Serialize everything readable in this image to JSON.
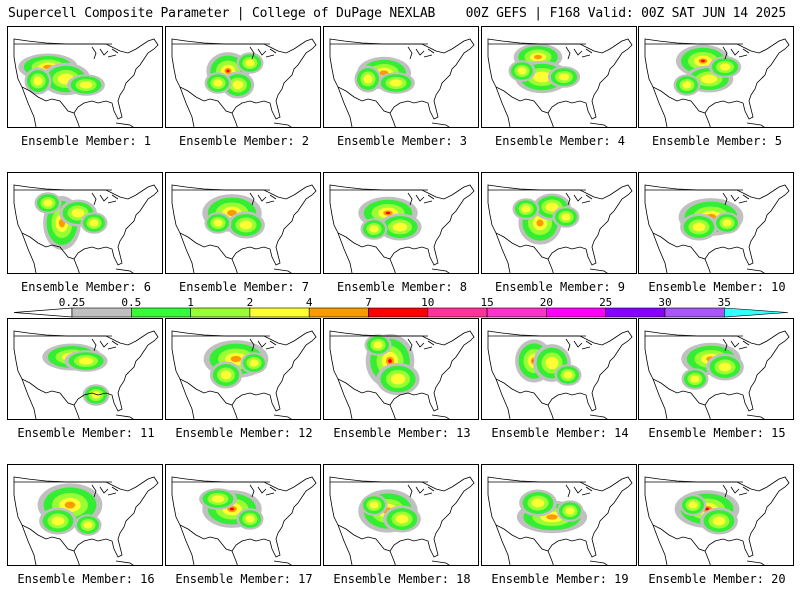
{
  "header": {
    "left": "Supercell Composite Parameter | College of DuPage NEXLAB",
    "right": "00Z GEFS | F168 Valid: 00Z SAT JUN 14 2025"
  },
  "members": [
    "Ensemble Member: 1",
    "Ensemble Member: 2",
    "Ensemble Member: 3",
    "Ensemble Member: 4",
    "Ensemble Member: 5",
    "Ensemble Member: 6",
    "Ensemble Member: 7",
    "Ensemble Member: 8",
    "Ensemble Member: 9",
    "Ensemble Member: 10",
    "Ensemble Member: 11",
    "Ensemble Member: 12",
    "Ensemble Member: 13",
    "Ensemble Member: 14",
    "Ensemble Member: 15",
    "Ensemble Member: 16",
    "Ensemble Member: 17",
    "Ensemble Member: 18",
    "Ensemble Member: 19",
    "Ensemble Member: 20"
  ],
  "colorbar": {
    "levels": [
      "0.25",
      "0.5",
      "1",
      "2",
      "4",
      "7",
      "10",
      "15",
      "20",
      "25",
      "30",
      "35"
    ],
    "colors": [
      "#c0c0c0",
      "#33ff33",
      "#99ff33",
      "#ffff33",
      "#ff9900",
      "#ff0000",
      "#ff3399",
      "#ff33cc",
      "#ff00ff",
      "#8800ff",
      "#aa55ff",
      "#33ffff"
    ]
  },
  "fill_colors": {
    "gray": "#c0c0c0",
    "green": "#33ee33",
    "lightgreen": "#99ff33",
    "yellow": "#ffff33",
    "orange": "#ff9900",
    "red": "#ff0000"
  }
}
